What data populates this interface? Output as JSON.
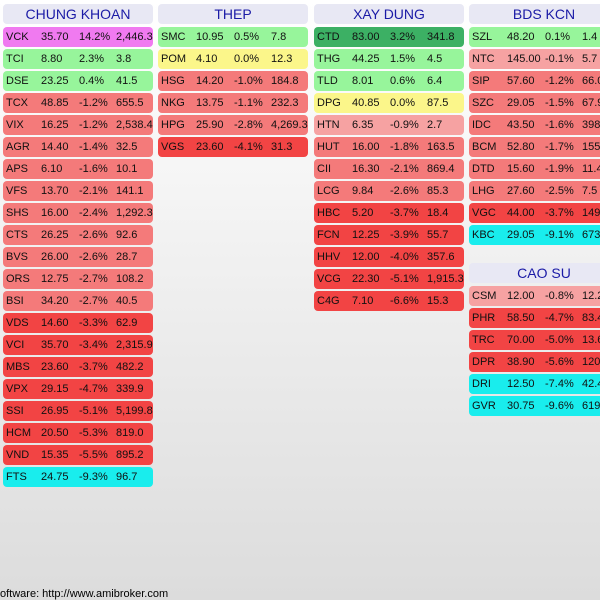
{
  "colors": {
    "dark_green": "#3cb064",
    "light_green": "#97f59b",
    "yellow": "#fbf68a",
    "pink": "#f6a2a2",
    "light_red": "#f47a7a",
    "red": "#f24444",
    "cyan": "#19eded"
  },
  "panels": [
    {
      "title": "CHUNG KHOAN",
      "rows": [
        {
          "ticker": "VCK",
          "price": "35.70",
          "change": "14.2%",
          "volume": "2,446.3",
          "color": "#f07af0"
        },
        {
          "ticker": "TCI",
          "price": "8.80",
          "change": "2.3%",
          "volume": "3.8",
          "color": "#97f59b"
        },
        {
          "ticker": "DSE",
          "price": "23.25",
          "change": "0.4%",
          "volume": "41.5",
          "color": "#97f59b"
        },
        {
          "ticker": "TCX",
          "price": "48.85",
          "change": "-1.2%",
          "volume": "655.5",
          "color": "#f47a7a"
        },
        {
          "ticker": "VIX",
          "price": "16.25",
          "change": "-1.2%",
          "volume": "2,538.4",
          "color": "#f47a7a"
        },
        {
          "ticker": "AGR",
          "price": "14.40",
          "change": "-1.4%",
          "volume": "32.5",
          "color": "#f47a7a"
        },
        {
          "ticker": "APS",
          "price": "6.10",
          "change": "-1.6%",
          "volume": "10.1",
          "color": "#f47a7a"
        },
        {
          "ticker": "VFS",
          "price": "13.70",
          "change": "-2.1%",
          "volume": "141.1",
          "color": "#f47a7a"
        },
        {
          "ticker": "SHS",
          "price": "16.00",
          "change": "-2.4%",
          "volume": "1,292.3",
          "color": "#f47a7a"
        },
        {
          "ticker": "CTS",
          "price": "26.25",
          "change": "-2.6%",
          "volume": "92.6",
          "color": "#f47a7a"
        },
        {
          "ticker": "BVS",
          "price": "26.00",
          "change": "-2.6%",
          "volume": "28.7",
          "color": "#f47a7a"
        },
        {
          "ticker": "ORS",
          "price": "12.75",
          "change": "-2.7%",
          "volume": "108.2",
          "color": "#f47a7a"
        },
        {
          "ticker": "BSI",
          "price": "34.20",
          "change": "-2.7%",
          "volume": "40.5",
          "color": "#f47a7a"
        },
        {
          "ticker": "VDS",
          "price": "14.60",
          "change": "-3.3%",
          "volume": "62.9",
          "color": "#f24444"
        },
        {
          "ticker": "VCI",
          "price": "35.70",
          "change": "-3.4%",
          "volume": "2,315.9",
          "color": "#f24444"
        },
        {
          "ticker": "MBS",
          "price": "23.60",
          "change": "-3.7%",
          "volume": "482.2",
          "color": "#f24444"
        },
        {
          "ticker": "VPX",
          "price": "29.15",
          "change": "-4.7%",
          "volume": "339.9",
          "color": "#f24444"
        },
        {
          "ticker": "SSI",
          "price": "26.95",
          "change": "-5.1%",
          "volume": "5,199.8",
          "color": "#f24444"
        },
        {
          "ticker": "HCM",
          "price": "20.50",
          "change": "-5.3%",
          "volume": "819.0",
          "color": "#f24444"
        },
        {
          "ticker": "VND",
          "price": "15.35",
          "change": "-5.5%",
          "volume": "895.2",
          "color": "#f24444"
        },
        {
          "ticker": "FTS",
          "price": "24.75",
          "change": "-9.3%",
          "volume": "96.7",
          "color": "#19eded"
        }
      ]
    },
    {
      "title": "THEP",
      "rows": [
        {
          "ticker": "SMC",
          "price": "10.95",
          "change": "0.5%",
          "volume": "7.8",
          "color": "#97f59b"
        },
        {
          "ticker": "POM",
          "price": "4.10",
          "change": "0.0%",
          "volume": "12.3",
          "color": "#fbf68a"
        },
        {
          "ticker": "HSG",
          "price": "14.20",
          "change": "-1.0%",
          "volume": "184.8",
          "color": "#f47a7a"
        },
        {
          "ticker": "NKG",
          "price": "13.75",
          "change": "-1.1%",
          "volume": "232.3",
          "color": "#f47a7a"
        },
        {
          "ticker": "HPG",
          "price": "25.90",
          "change": "-2.8%",
          "volume": "4,269.3",
          "color": "#f47a7a"
        },
        {
          "ticker": "VGS",
          "price": "23.60",
          "change": "-4.1%",
          "volume": "31.3",
          "color": "#f24444"
        }
      ]
    },
    {
      "title": "XAY DUNG",
      "rows": [
        {
          "ticker": "CTD",
          "price": "83.00",
          "change": "3.2%",
          "volume": "341.8",
          "color": "#3cb064"
        },
        {
          "ticker": "THG",
          "price": "44.25",
          "change": "1.5%",
          "volume": "4.5",
          "color": "#97f59b"
        },
        {
          "ticker": "TLD",
          "price": "8.01",
          "change": "0.6%",
          "volume": "6.4",
          "color": "#97f59b"
        },
        {
          "ticker": "DPG",
          "price": "40.85",
          "change": "0.0%",
          "volume": "87.5",
          "color": "#fbf68a"
        },
        {
          "ticker": "HTN",
          "price": "6.35",
          "change": "-0.9%",
          "volume": "2.7",
          "color": "#f6a2a2"
        },
        {
          "ticker": "HUT",
          "price": "16.00",
          "change": "-1.8%",
          "volume": "163.5",
          "color": "#f47a7a"
        },
        {
          "ticker": "CII",
          "price": "16.30",
          "change": "-2.1%",
          "volume": "869.4",
          "color": "#f47a7a"
        },
        {
          "ticker": "LCG",
          "price": "9.84",
          "change": "-2.6%",
          "volume": "85.3",
          "color": "#f47a7a"
        },
        {
          "ticker": "HBC",
          "price": "5.20",
          "change": "-3.7%",
          "volume": "18.4",
          "color": "#f24444"
        },
        {
          "ticker": "FCN",
          "price": "12.25",
          "change": "-3.9%",
          "volume": "55.7",
          "color": "#f24444"
        },
        {
          "ticker": "HHV",
          "price": "12.00",
          "change": "-4.0%",
          "volume": "357.6",
          "color": "#f24444"
        },
        {
          "ticker": "VCG",
          "price": "22.30",
          "change": "-5.1%",
          "volume": "1,915.3",
          "color": "#f24444"
        },
        {
          "ticker": "C4G",
          "price": "7.10",
          "change": "-6.6%",
          "volume": "15.3",
          "color": "#f24444"
        }
      ]
    },
    {
      "title": "BDS KCN",
      "rows": [
        {
          "ticker": "SZL",
          "price": "48.20",
          "change": "0.1%",
          "volume": "1.4",
          "color": "#97f59b"
        },
        {
          "ticker": "NTC",
          "price": "145.00",
          "change": "-0.1%",
          "volume": "5.7",
          "color": "#f6a2a2"
        },
        {
          "ticker": "SIP",
          "price": "57.60",
          "change": "-1.2%",
          "volume": "66.0",
          "color": "#f47a7a"
        },
        {
          "ticker": "SZC",
          "price": "29.05",
          "change": "-1.5%",
          "volume": "67.9",
          "color": "#f47a7a"
        },
        {
          "ticker": "IDC",
          "price": "43.50",
          "change": "-1.6%",
          "volume": "398",
          "color": "#f47a7a"
        },
        {
          "ticker": "BCM",
          "price": "52.80",
          "change": "-1.7%",
          "volume": "155",
          "color": "#f47a7a"
        },
        {
          "ticker": "DTD",
          "price": "15.60",
          "change": "-1.9%",
          "volume": "11.4",
          "color": "#f47a7a"
        },
        {
          "ticker": "LHG",
          "price": "27.60",
          "change": "-2.5%",
          "volume": "7.5",
          "color": "#f47a7a"
        },
        {
          "ticker": "VGC",
          "price": "44.00",
          "change": "-3.7%",
          "volume": "149",
          "color": "#f24444"
        },
        {
          "ticker": "KBC",
          "price": "29.05",
          "change": "-9.1%",
          "volume": "673",
          "color": "#19eded"
        }
      ]
    },
    {
      "title": "CAO SU",
      "rows": [
        {
          "ticker": "CSM",
          "price": "12.00",
          "change": "-0.8%",
          "volume": "12.2",
          "color": "#f6a2a2"
        },
        {
          "ticker": "PHR",
          "price": "58.50",
          "change": "-4.7%",
          "volume": "83.4",
          "color": "#f24444"
        },
        {
          "ticker": "TRC",
          "price": "70.00",
          "change": "-5.0%",
          "volume": "13.6",
          "color": "#f24444"
        },
        {
          "ticker": "DPR",
          "price": "38.90",
          "change": "-5.6%",
          "volume": "120",
          "color": "#f24444"
        },
        {
          "ticker": "DRI",
          "price": "12.50",
          "change": "-7.4%",
          "volume": "42.4",
          "color": "#19eded"
        },
        {
          "ticker": "GVR",
          "price": "30.75",
          "change": "-9.6%",
          "volume": "619",
          "color": "#19eded"
        }
      ]
    }
  ],
  "footer": {
    "text": "oftware: http://www.amibroker.com"
  }
}
